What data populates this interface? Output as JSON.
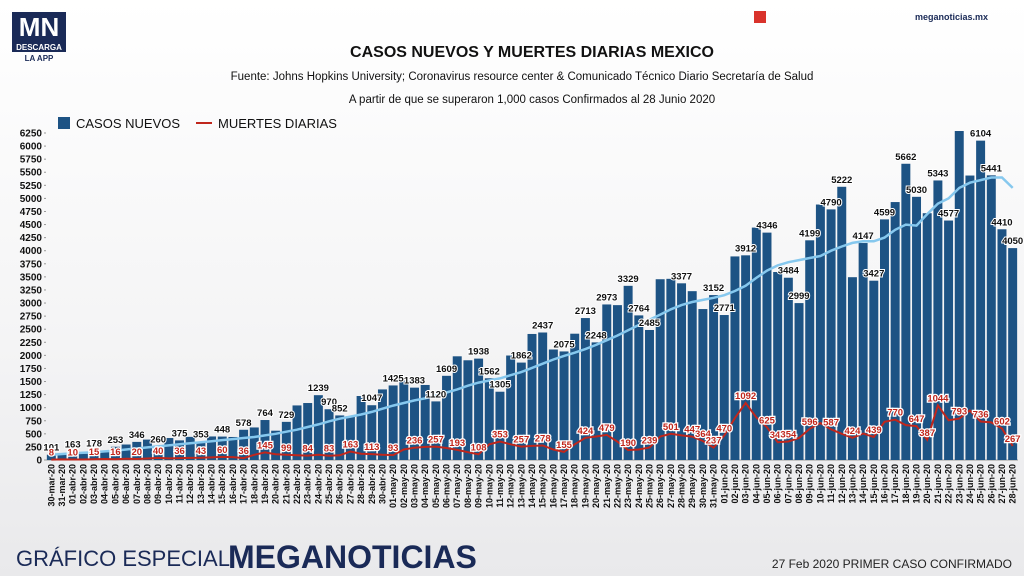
{
  "header": {
    "logo": "MN",
    "logo_sub1": "DESCARGA",
    "logo_sub2": "LA APP",
    "site": "meganoticias.mx"
  },
  "footer": {
    "left1": "GRÁFICO ESPECIAL",
    "left2": "MEGANOTICIAS",
    "right": "27 Feb 2020 PRIMER CASO CONFIRMADO"
  },
  "chart_data": {
    "type": "bar",
    "title": "CASOS NUEVOS Y MUERTES DIARIAS MEXICO",
    "subtitle": "Fuente: Johns Hopkins University; Coronavirus resource center & Comunicado Técnico Diario Secretaría de Salud",
    "note": "A partir de que se superaron 1,000 casos Confirmados al 28 Junio 2020",
    "categories": [
      "30-mar-20",
      "31-mar-20",
      "01-abr-20",
      "02-abr-20",
      "03-abr-20",
      "04-abr-20",
      "05-abr-20",
      "06-abr-20",
      "07-abr-20",
      "08-abr-20",
      "09-abr-20",
      "10-abr-20",
      "11-abr-20",
      "12-abr-20",
      "13-abr-20",
      "14-abr-20",
      "15-abr-20",
      "16-abr-20",
      "17-abr-20",
      "18-abr-20",
      "19-abr-20",
      "20-abr-20",
      "21-abr-20",
      "22-abr-20",
      "23-abr-20",
      "24-abr-20",
      "25-abr-20",
      "26-abr-20",
      "27-abr-20",
      "28-abr-20",
      "29-abr-20",
      "30-abr-20",
      "01-may-20",
      "02-may-20",
      "03-may-20",
      "04-may-20",
      "05-may-20",
      "06-may-20",
      "07-may-20",
      "08-may-20",
      "09-may-20",
      "10-may-20",
      "11-may-20",
      "12-may-20",
      "13-may-20",
      "14-may-20",
      "15-may-20",
      "16-may-20",
      "17-may-20",
      "18-may-20",
      "19-may-20",
      "20-may-20",
      "21-may-20",
      "22-may-20",
      "23-may-20",
      "24-may-20",
      "25-may-20",
      "26-may-20",
      "27-may-20",
      "28-may-20",
      "29-may-20",
      "30-may-20",
      "31-may-20",
      "01-jun-20",
      "02-jun-20",
      "03-jun-20",
      "04-jun-20",
      "05-jun-20",
      "06-jun-20",
      "07-jun-20",
      "08-jun-20",
      "09-jun-20",
      "10-jun-20",
      "11-jun-20",
      "12-jun-20",
      "13-jun-20",
      "14-jun-20",
      "15-jun-20",
      "16-jun-20",
      "17-jun-20",
      "18-jun-20",
      "19-jun-20",
      "20-jun-20",
      "21-jun-20",
      "22-jun-20",
      "23-jun-20",
      "24-jun-20",
      "25-jun-20",
      "26-jun-20",
      "27-jun-20",
      "28-jun-20"
    ],
    "series": [
      {
        "name": "CASOS NUEVOS",
        "type": "bar",
        "color": "#1d5384",
        "values": [
          101,
          124,
          163,
          120,
          178,
          168,
          253,
          296,
          346,
          390,
          260,
          420,
          375,
          442,
          353,
          450,
          448,
          440,
          578,
          622,
          764,
          560,
          729,
          1043,
          1089,
          1239,
          970,
          852,
          835,
          1223,
          1047,
          1349,
          1425,
          1515,
          1383,
          1434,
          1120,
          1609,
          1982,
          1906,
          1938,
          1562,
          1305,
          1997,
          1862,
          2409,
          2437,
          2112,
          2075,
          2414,
          2713,
          2248,
          2973,
          2960,
          3329,
          2764,
          2485,
          3455,
          3463,
          3377,
          3227,
          2885,
          3152,
          2771,
          3891,
          3912,
          4442,
          4346,
          3593,
          3484,
          2999,
          4199,
          4883,
          4790,
          5222,
          3494,
          4147,
          3427,
          4599,
          4930,
          5662,
          5030,
          4717,
          5343,
          4577,
          6288,
          5437,
          6104,
          5441,
          4410,
          4050
        ],
        "value_labels": [
          "101",
          null,
          "163",
          null,
          "178",
          null,
          "253",
          null,
          "346",
          null,
          "260",
          null,
          "375",
          null,
          "353",
          null,
          "448",
          null,
          "578",
          null,
          "764",
          null,
          "729",
          null,
          null,
          "1239",
          "970",
          "852",
          null,
          null,
          "1047",
          null,
          "1425",
          null,
          "1383",
          null,
          "1120",
          "1609",
          null,
          null,
          "1938",
          "1562",
          "1305",
          null,
          "1862",
          null,
          "2437",
          null,
          "2075",
          null,
          "2713",
          "2248",
          "2973",
          null,
          "3329",
          "2764",
          "2485",
          null,
          null,
          "3377",
          null,
          null,
          "3152",
          "2771",
          null,
          "3912",
          null,
          "4346",
          null,
          "3484",
          "2999",
          "4199",
          null,
          "4790",
          "5222",
          null,
          "4147",
          "3427",
          "4599",
          null,
          "5662",
          "5030",
          null,
          "5343",
          "4577",
          null,
          null,
          "6104",
          "5441",
          "4410",
          "4050"
        ]
      },
      {
        "name": "MUERTES DIARIAS",
        "type": "line",
        "color": "#c0261c",
        "values": [
          8,
          12,
          10,
          10,
          15,
          20,
          16,
          25,
          20,
          28,
          40,
          30,
          36,
          40,
          43,
          50,
          60,
          55,
          36,
          100,
          145,
          110,
          99,
          90,
          84,
          100,
          83,
          90,
          163,
          120,
          113,
          100,
          93,
          200,
          236,
          250,
          257,
          230,
          193,
          150,
          108,
          300,
          353,
          300,
          257,
          270,
          278,
          200,
          155,
          300,
          424,
          450,
          479,
          350,
          190,
          200,
          239,
          450,
          501,
          470,
          447,
          364,
          237,
          470,
          800,
          1092,
          816,
          625,
          341,
          354,
          420,
          596,
          708,
          587,
          500,
          424,
          504,
          439,
          730,
          770,
          668,
          647,
          387,
          1044,
          759,
          793,
          947,
          736,
          719,
          602,
          267
        ],
        "value_labels": [
          "8",
          null,
          "10",
          null,
          "15",
          null,
          "16",
          null,
          "20",
          null,
          "40",
          null,
          "36",
          null,
          "43",
          null,
          "60",
          null,
          "36",
          null,
          "145",
          null,
          "99",
          null,
          "84",
          null,
          "83",
          null,
          "163",
          null,
          "113",
          null,
          "93",
          null,
          "236",
          null,
          "257",
          null,
          "193",
          null,
          "108",
          null,
          "353",
          null,
          "257",
          null,
          "278",
          null,
          "155",
          null,
          "424",
          null,
          "479",
          null,
          "190",
          null,
          "239",
          null,
          "501",
          null,
          "447",
          "364",
          "237",
          "470",
          null,
          "1092",
          null,
          "625",
          "341",
          "354",
          null,
          "596",
          null,
          "587",
          null,
          "424",
          null,
          "439",
          null,
          "770",
          null,
          "647",
          "387",
          "1044",
          null,
          "793",
          null,
          "736",
          null,
          "602",
          "267"
        ]
      }
    ],
    "trend": {
      "color": "#86c8ee",
      "values": [
        100,
        115,
        130,
        140,
        150,
        165,
        180,
        200,
        220,
        240,
        260,
        280,
        300,
        320,
        340,
        360,
        380,
        400,
        420,
        440,
        470,
        500,
        540,
        580,
        630,
        680,
        740,
        790,
        830,
        870,
        920,
        980,
        1040,
        1090,
        1140,
        1180,
        1230,
        1290,
        1350,
        1420,
        1480,
        1520,
        1560,
        1620,
        1680,
        1760,
        1840,
        1920,
        1990,
        2050,
        2120,
        2200,
        2290,
        2380,
        2480,
        2580,
        2680,
        2780,
        2880,
        2960,
        3020,
        3060,
        3100,
        3150,
        3230,
        3330,
        3480,
        3620,
        3720,
        3780,
        3820,
        3860,
        3900,
        4000,
        4080,
        4150,
        4180,
        4180,
        4250,
        4400,
        4500,
        4480,
        4700,
        4900,
        5000,
        5200,
        5300,
        5350,
        5400,
        5400,
        5200
      ]
    },
    "ylim": [
      0,
      6250
    ],
    "yticks": [
      0,
      250,
      500,
      750,
      1000,
      1250,
      1500,
      1750,
      2000,
      2250,
      2500,
      2750,
      3000,
      3250,
      3500,
      3750,
      4000,
      4250,
      4500,
      4750,
      5000,
      5250,
      5500,
      5750,
      6000,
      6250
    ],
    "grid": false
  }
}
